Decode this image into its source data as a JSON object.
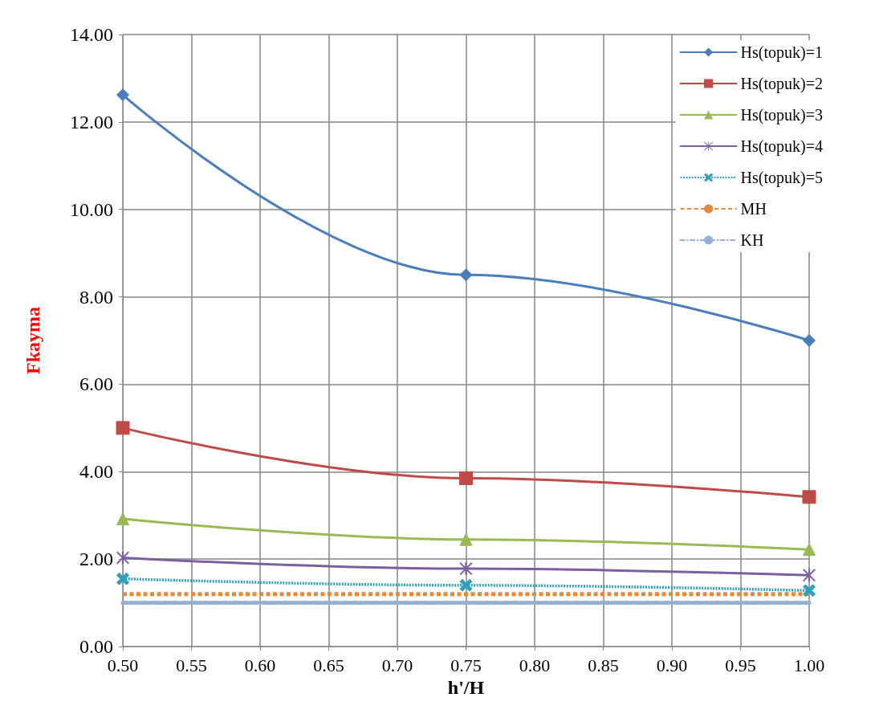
{
  "chart_data": {
    "type": "line",
    "xlabel": "h'/H",
    "ylabel": "Fkayma",
    "x": [
      0.5,
      0.75,
      1.0
    ],
    "xlim": [
      0.5,
      1.0
    ],
    "xticks": [
      {
        "value": 0.5,
        "label": "0.50"
      },
      {
        "value": 0.55,
        "label": "0.55"
      },
      {
        "value": 0.6,
        "label": "0.60"
      },
      {
        "value": 0.65,
        "label": "0.65"
      },
      {
        "value": 0.7,
        "label": "0.70"
      },
      {
        "value": 0.75,
        "label": "0.75"
      },
      {
        "value": 0.8,
        "label": "0.80"
      },
      {
        "value": 0.85,
        "label": "0.85"
      },
      {
        "value": 0.9,
        "label": "0.90"
      },
      {
        "value": 0.95,
        "label": "0.95"
      },
      {
        "value": 1.0,
        "label": "1.00"
      }
    ],
    "ylim": [
      0,
      14
    ],
    "yticks": [
      {
        "value": 0,
        "label": "0.00"
      },
      {
        "value": 2,
        "label": "2.00"
      },
      {
        "value": 4,
        "label": "4.00"
      },
      {
        "value": 6,
        "label": "6.00"
      },
      {
        "value": 8,
        "label": "8.00"
      },
      {
        "value": 10,
        "label": "10.00"
      },
      {
        "value": 12,
        "label": "12.00"
      },
      {
        "value": 14,
        "label": "14.00"
      }
    ],
    "grid": true,
    "legend": "top right",
    "series": [
      {
        "name": "Hs(topuk)=1",
        "color": "#4a7ebb",
        "values": [
          12.62,
          8.5,
          7.0
        ],
        "marker": "diamond",
        "line_style": "solid"
      },
      {
        "name": "Hs(topuk)=2",
        "color": "#be4b48",
        "values": [
          5.0,
          3.85,
          3.42
        ],
        "marker": "square",
        "line_style": "solid"
      },
      {
        "name": "Hs(topuk)=3",
        "color": "#98b954",
        "values": [
          2.92,
          2.45,
          2.22
        ],
        "marker": "triangle",
        "line_style": "solid"
      },
      {
        "name": "Hs(topuk)=4",
        "color": "#7d5fa0",
        "values": [
          2.03,
          1.78,
          1.63
        ],
        "marker": "star",
        "line_style": "solid"
      },
      {
        "name": "Hs(topuk)=5",
        "color": "#31a0b8",
        "values": [
          1.55,
          1.4,
          1.28
        ],
        "marker": "cross",
        "line_style": "dashed"
      },
      {
        "name": "MH",
        "color": "#e38a3b",
        "values": [
          1.2,
          1.2,
          1.2
        ],
        "marker": "none",
        "line_style": "dashed"
      },
      {
        "name": "KH",
        "color": "#95aed8",
        "values": [
          1.0,
          1.0,
          1.0
        ],
        "marker": "none",
        "line_style": "dotted"
      }
    ]
  }
}
